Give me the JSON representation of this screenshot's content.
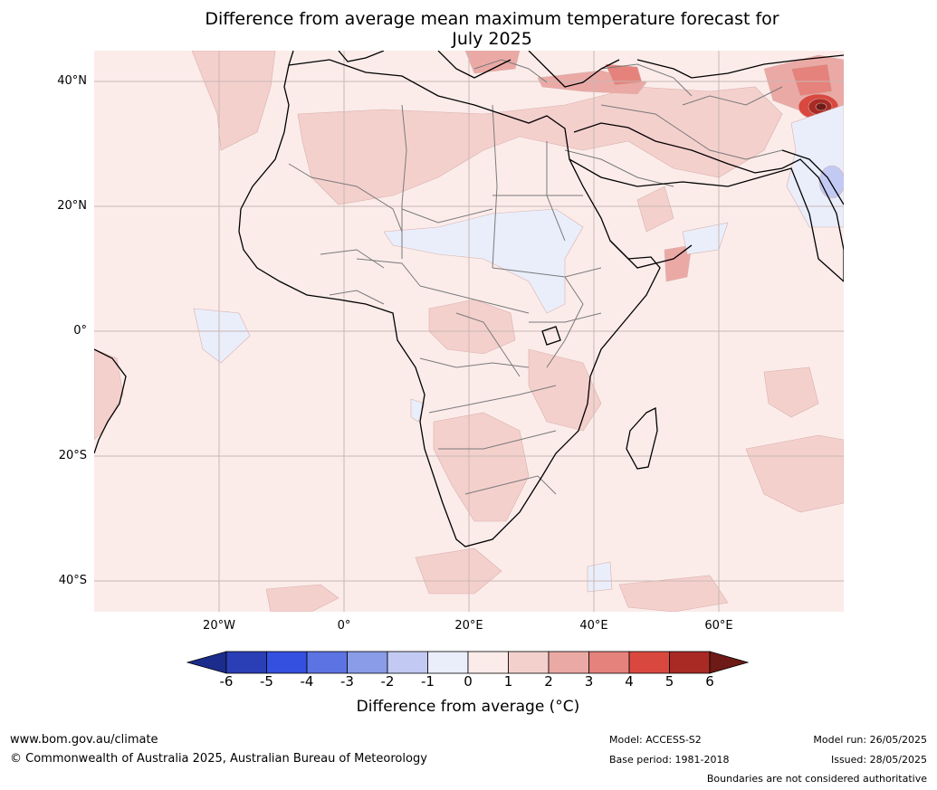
{
  "title_line1": "Difference from average mean maximum temperature forecast for",
  "title_line2": "July 2025",
  "lat_labels": [
    "40°N",
    "20°N",
    "0°",
    "20°S",
    "40°S"
  ],
  "lon_labels": [
    "20°W",
    "0°",
    "20°E",
    "40°E",
    "60°E"
  ],
  "colorbar": {
    "ticks": [
      "-6",
      "-5",
      "-4",
      "-3",
      "-2",
      "-1",
      "0",
      "1",
      "2",
      "3",
      "4",
      "5",
      "6"
    ],
    "colors": [
      "#1c2c8c",
      "#2a3fb5",
      "#3450e0",
      "#5c73e3",
      "#8a9be8",
      "#c2caf3",
      "#eaeefb",
      "#fbecea",
      "#f4d0cd",
      "#eba9a5",
      "#e5827b",
      "#d9483f",
      "#a92a24",
      "#6e1a16"
    ],
    "label": "Difference from average (°C)"
  },
  "footer": {
    "url": "www.bom.gov.au/climate",
    "copyright": "© Commonwealth of Australia 2025, Australian Bureau of Meteorology",
    "model": "Model: ACCESS-S2",
    "base_period": "Base period: 1981-2018",
    "model_run": "Model run: 26/05/2025",
    "issued": "Issued: 28/05/2025",
    "disclaimer": "Boundaries are not considered authoritative"
  }
}
